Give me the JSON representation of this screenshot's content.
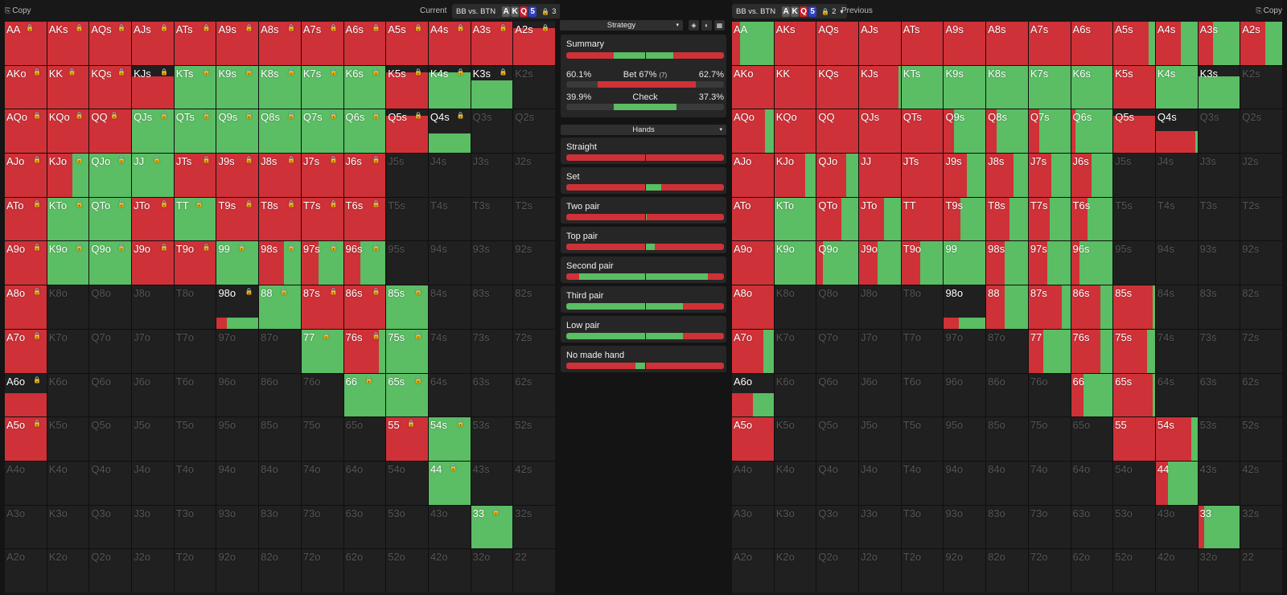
{
  "colors": {
    "bet": "#cf3138",
    "check": "#5bbd64",
    "empty": "#202020"
  },
  "left": {
    "copy_label": "Copy",
    "title": "Current",
    "spot": "BB vs. BTN",
    "board": [
      {
        "c": "A",
        "s": "gray"
      },
      {
        "c": "K",
        "s": "gray"
      },
      {
        "c": "Q",
        "s": "red"
      },
      {
        "c": "5",
        "s": "blue"
      }
    ],
    "count": "3"
  },
  "right": {
    "copy_label": "Copy",
    "title": "Previous",
    "spot": "BB vs. BTN",
    "board": [
      {
        "c": "A",
        "s": "gray"
      },
      {
        "c": "K",
        "s": "gray"
      },
      {
        "c": "Q",
        "s": "red"
      },
      {
        "c": "5",
        "s": "blue"
      }
    ],
    "count": "2"
  },
  "hands": [
    [
      "AA",
      "AKs",
      "AQs",
      "AJs",
      "ATs",
      "A9s",
      "A8s",
      "A7s",
      "A6s",
      "A5s",
      "A4s",
      "A3s",
      "A2s"
    ],
    [
      "AKo",
      "KK",
      "KQs",
      "KJs",
      "KTs",
      "K9s",
      "K8s",
      "K7s",
      "K6s",
      "K5s",
      "K4s",
      "K3s",
      "K2s"
    ],
    [
      "AQo",
      "KQo",
      "QQ",
      "QJs",
      "QTs",
      "Q9s",
      "Q8s",
      "Q7s",
      "Q6s",
      "Q5s",
      "Q4s",
      "Q3s",
      "Q2s"
    ],
    [
      "AJo",
      "KJo",
      "QJo",
      "JJ",
      "JTs",
      "J9s",
      "J8s",
      "J7s",
      "J6s",
      "J5s",
      "J4s",
      "J3s",
      "J2s"
    ],
    [
      "ATo",
      "KTo",
      "QTo",
      "JTo",
      "TT",
      "T9s",
      "T8s",
      "T7s",
      "T6s",
      "T5s",
      "T4s",
      "T3s",
      "T2s"
    ],
    [
      "A9o",
      "K9o",
      "Q9o",
      "J9o",
      "T9o",
      "99",
      "98s",
      "97s",
      "96s",
      "95s",
      "94s",
      "93s",
      "92s"
    ],
    [
      "A8o",
      "K8o",
      "Q8o",
      "J8o",
      "T8o",
      "98o",
      "88",
      "87s",
      "86s",
      "85s",
      "84s",
      "83s",
      "82s"
    ],
    [
      "A7o",
      "K7o",
      "Q7o",
      "J7o",
      "T7o",
      "97o",
      "87o",
      "77",
      "76s",
      "75s",
      "74s",
      "73s",
      "72s"
    ],
    [
      "A6o",
      "K6o",
      "Q6o",
      "J6o",
      "T6o",
      "96o",
      "86o",
      "76o",
      "66",
      "65s",
      "64s",
      "63s",
      "62s"
    ],
    [
      "A5o",
      "K5o",
      "Q5o",
      "J5o",
      "T5o",
      "95o",
      "85o",
      "75o",
      "65o",
      "55",
      "54s",
      "53s",
      "52s"
    ],
    [
      "A4o",
      "K4o",
      "Q4o",
      "J4o",
      "T4o",
      "94o",
      "84o",
      "74o",
      "64o",
      "54o",
      "44",
      "43s",
      "42s"
    ],
    [
      "A3o",
      "K3o",
      "Q3o",
      "J3o",
      "T3o",
      "93o",
      "83o",
      "73o",
      "63o",
      "53o",
      "43o",
      "33",
      "32s"
    ],
    [
      "A2o",
      "K2o",
      "Q2o",
      "J2o",
      "T2o",
      "92o",
      "82o",
      "72o",
      "62o",
      "52o",
      "42o",
      "32o",
      "22"
    ]
  ],
  "left_grid": {
    "AA": [
      1,
      1
    ],
    "AKs": [
      1,
      1
    ],
    "AQs": [
      1,
      1
    ],
    "AJs": [
      1,
      1
    ],
    "ATs": [
      1,
      1
    ],
    "A9s": [
      1,
      1
    ],
    "A8s": [
      1,
      1
    ],
    "A7s": [
      1,
      1
    ],
    "A6s": [
      1,
      1
    ],
    "A5s": [
      1,
      1
    ],
    "A4s": [
      1,
      1
    ],
    "A3s": [
      1,
      1
    ],
    "A2s": [
      1,
      0.85
    ],
    "AKo": [
      1,
      1
    ],
    "KK": [
      1,
      1
    ],
    "KQs": [
      1,
      1
    ],
    "KJs": [
      1,
      0.75
    ],
    "KTs": [
      0,
      1
    ],
    "K9s": [
      0,
      1
    ],
    "K8s": [
      0,
      1
    ],
    "K7s": [
      0,
      1
    ],
    "K6s": [
      0,
      1
    ],
    "K5s": [
      1,
      0.85
    ],
    "K4s": [
      0,
      0.85
    ],
    "K3s": [
      0,
      0.65
    ],
    "AQo": [
      1,
      1
    ],
    "KQo": [
      1,
      1
    ],
    "QQ": [
      1,
      1
    ],
    "QJs": [
      0,
      1
    ],
    "QTs": [
      0,
      1
    ],
    "Q9s": [
      0,
      1
    ],
    "Q8s": [
      0,
      1
    ],
    "Q7s": [
      0,
      1
    ],
    "Q6s": [
      0,
      1
    ],
    "Q5s": [
      1,
      0.85
    ],
    "Q4s": [
      0,
      0.45
    ],
    "AJo": [
      1,
      1
    ],
    "KJo": [
      0.6,
      1
    ],
    "QJo": [
      0,
      1
    ],
    "JJ": [
      0,
      1
    ],
    "JTs": [
      1,
      1
    ],
    "J9s": [
      1,
      1
    ],
    "J8s": [
      1,
      1
    ],
    "J7s": [
      1,
      1
    ],
    "J6s": [
      1,
      1
    ],
    "ATo": [
      1,
      1
    ],
    "KTo": [
      0,
      1
    ],
    "QTo": [
      0,
      1
    ],
    "JTo": [
      1,
      1
    ],
    "TT": [
      0,
      1
    ],
    "T9s": [
      1,
      1
    ],
    "T8s": [
      1,
      1
    ],
    "T7s": [
      1,
      1
    ],
    "T6s": [
      1,
      1
    ],
    "A9o": [
      1,
      1
    ],
    "K9o": [
      0,
      1
    ],
    "Q9o": [
      0,
      1
    ],
    "J9o": [
      1,
      1
    ],
    "T9o": [
      1,
      1
    ],
    "99": [
      0,
      1
    ],
    "98s": [
      0.6,
      1
    ],
    "97s": [
      0.4,
      1
    ],
    "96s": [
      0.4,
      1
    ],
    "A8o": [
      1,
      1
    ],
    "98o": [
      0.25,
      0.25
    ],
    "88": [
      0,
      1
    ],
    "87s": [
      1,
      1
    ],
    "86s": [
      1,
      1
    ],
    "85s": [
      0,
      1
    ],
    "A7o": [
      1,
      1
    ],
    "77": [
      0,
      1
    ],
    "76s": [
      0.85,
      1
    ],
    "75s": [
      0,
      1
    ],
    "A6o": [
      1,
      0.55
    ],
    "66": [
      0,
      1
    ],
    "65s": [
      0,
      1
    ],
    "A5o": [
      1,
      1
    ],
    "55": [
      1,
      1
    ],
    "54s": [
      0,
      1
    ],
    "44": [
      0,
      1
    ],
    "33": [
      0,
      1
    ]
  },
  "right_grid": {
    "AA": [
      0.2,
      1
    ],
    "AKs": [
      1,
      1
    ],
    "AQs": [
      1,
      1
    ],
    "AJs": [
      1,
      1
    ],
    "ATs": [
      1,
      1
    ],
    "A9s": [
      1,
      1
    ],
    "A8s": [
      1,
      1
    ],
    "A7s": [
      1,
      1
    ],
    "A6s": [
      1,
      1
    ],
    "A5s": [
      0.85,
      1
    ],
    "A4s": [
      0.6,
      1
    ],
    "A3s": [
      0.35,
      1
    ],
    "A2s": [
      0.6,
      1
    ],
    "AKo": [
      1,
      1
    ],
    "KK": [
      1,
      1
    ],
    "KQs": [
      1,
      1
    ],
    "KJs": [
      0.95,
      1
    ],
    "KTs": [
      0,
      1
    ],
    "K9s": [
      0,
      1
    ],
    "K8s": [
      0,
      1
    ],
    "K7s": [
      0,
      1
    ],
    "K6s": [
      0,
      1
    ],
    "K5s": [
      1,
      1
    ],
    "K4s": [
      0,
      1
    ],
    "K3s": [
      0,
      0.75
    ],
    "AQo": [
      0.8,
      1
    ],
    "KQo": [
      1,
      1
    ],
    "QQ": [
      1,
      1
    ],
    "QJs": [
      1,
      1
    ],
    "QTs": [
      1,
      1
    ],
    "Q9s": [
      0.25,
      1
    ],
    "Q8s": [
      0.25,
      1
    ],
    "Q7s": [
      0.25,
      1
    ],
    "Q6s": [
      0.1,
      1
    ],
    "Q5s": [
      1,
      0.85
    ],
    "Q4s": [
      0.95,
      0.5
    ],
    "AJo": [
      1,
      1
    ],
    "KJo": [
      0.75,
      1
    ],
    "QJo": [
      0.7,
      1
    ],
    "JJ": [
      1,
      1
    ],
    "JTs": [
      1,
      1
    ],
    "J9s": [
      0.55,
      1
    ],
    "J8s": [
      0.65,
      1
    ],
    "J7s": [
      0.55,
      1
    ],
    "J6s": [
      0.5,
      1
    ],
    "ATo": [
      1,
      1
    ],
    "KTo": [
      0,
      1
    ],
    "QTo": [
      0.6,
      1
    ],
    "JTo": [
      0.6,
      1
    ],
    "TT": [
      1,
      1
    ],
    "T9s": [
      0.4,
      1
    ],
    "T8s": [
      0.55,
      1
    ],
    "T7s": [
      0.5,
      1
    ],
    "T6s": [
      0.4,
      1
    ],
    "A9o": [
      1,
      1
    ],
    "K9o": [
      0,
      1
    ],
    "Q9o": [
      0.15,
      1
    ],
    "J9o": [
      0.45,
      1
    ],
    "T9o": [
      0.45,
      1
    ],
    "99": [
      0,
      1
    ],
    "98s": [
      0.45,
      1
    ],
    "97s": [
      0.45,
      1
    ],
    "96s": [
      0.2,
      1
    ],
    "A8o": [
      1,
      1
    ],
    "98o": [
      0.35,
      0.25
    ],
    "88": [
      0.45,
      1
    ],
    "87s": [
      0.8,
      1
    ],
    "86s": [
      0.7,
      1
    ],
    "85s": [
      0.95,
      1
    ],
    "A7o": [
      0.75,
      1
    ],
    "77": [
      0.35,
      1
    ],
    "76s": [
      0.7,
      1
    ],
    "75s": [
      0.8,
      1
    ],
    "A6o": [
      0.5,
      0.55
    ],
    "66": [
      0.3,
      1
    ],
    "65s": [
      0.95,
      1
    ],
    "A5o": [
      1,
      1
    ],
    "55": [
      1,
      1
    ],
    "54s": [
      0.85,
      1
    ],
    "44": [
      0.3,
      1
    ],
    "33": [
      0.15,
      1
    ]
  },
  "locked": [
    "AA",
    "AKs",
    "AQs",
    "AJs",
    "ATs",
    "A9s",
    "A8s",
    "A7s",
    "A6s",
    "A5s",
    "A4s",
    "A3s",
    "A2s",
    "AKo",
    "KK",
    "KQs",
    "KJs",
    "KTs",
    "K9s",
    "K8s",
    "K7s",
    "K6s",
    "K5s",
    "K4s",
    "K3s",
    "AQo",
    "KQo",
    "QQ",
    "QJs",
    "QTs",
    "Q9s",
    "Q8s",
    "Q7s",
    "Q6s",
    "Q5s",
    "Q4s",
    "AJo",
    "KJo",
    "QJo",
    "JJ",
    "JTs",
    "J9s",
    "J8s",
    "J7s",
    "J6s",
    "ATo",
    "KTo",
    "QTo",
    "JTo",
    "TT",
    "T9s",
    "T8s",
    "T7s",
    "T6s",
    "A9o",
    "K9o",
    "Q9o",
    "J9o",
    "T9o",
    "99",
    "98s",
    "97s",
    "96s",
    "A8o",
    "98o",
    "88",
    "87s",
    "86s",
    "85s",
    "A7o",
    "77",
    "76s",
    "75s",
    "A6o",
    "66",
    "65s",
    "A5o",
    "55",
    "54s",
    "44",
    "33"
  ],
  "middle": {
    "strategy_label": "Strategy",
    "hands_label": "Hands",
    "summary": {
      "title": "Summary",
      "bet_left": "60.1%",
      "bet_label": "Bet",
      "bet_pct": "67%",
      "bet_count": "(7)",
      "bet_right": "62.7%",
      "check_left": "39.9%",
      "check_label": "Check",
      "check_right": "37.3%",
      "main_bar": [
        0.3,
        0.38,
        0.32
      ],
      "bet_bar_fill": [
        0.2,
        0.82
      ],
      "check_bar_fill": [
        0.3,
        0.7
      ]
    },
    "categories": [
      {
        "name": "Straight",
        "bar": [
          1.0,
          0,
          0
        ]
      },
      {
        "name": "Set",
        "bar": [
          0.5,
          0.1,
          0.4
        ]
      },
      {
        "name": "Two pair",
        "bar": [
          0.5,
          0.01,
          0.49
        ]
      },
      {
        "name": "Top pair",
        "bar": [
          0.5,
          0.06,
          0.44
        ]
      },
      {
        "name": "Second pair",
        "bar": [
          0.08,
          0.82,
          0.1
        ]
      },
      {
        "name": "Third pair",
        "bar": [
          0,
          0.74,
          0.26
        ]
      },
      {
        "name": "Low pair",
        "bar": [
          0,
          0.74,
          0.26
        ]
      },
      {
        "name": "No made hand",
        "bar": [
          0.44,
          0.06,
          0.3,
          0.2
        ]
      }
    ]
  }
}
